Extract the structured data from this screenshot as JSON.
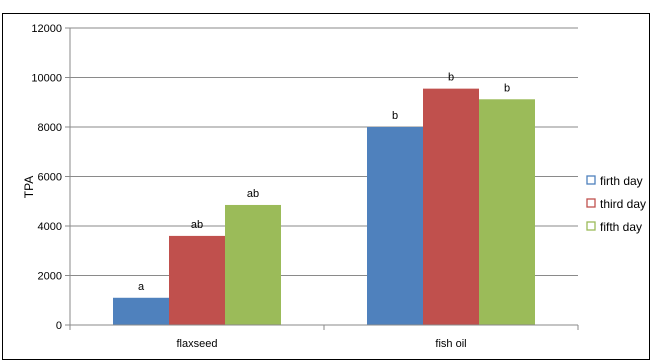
{
  "chart_data": {
    "type": "bar",
    "title": "",
    "xlabel": "",
    "ylabel": "TPA",
    "ylim": [
      0,
      12000
    ],
    "yticks": [
      0,
      2000,
      4000,
      6000,
      8000,
      10000,
      12000
    ],
    "grid": true,
    "legend_position": "right",
    "categories": [
      "flaxseed",
      "fish oil"
    ],
    "series": [
      {
        "name": "firth day",
        "color": "#4F81BD",
        "values": [
          1100,
          8000
        ],
        "labels": [
          "a",
          "b"
        ]
      },
      {
        "name": "third day",
        "color": "#C0504D",
        "values": [
          3600,
          9550
        ],
        "labels": [
          "ab",
          "b"
        ]
      },
      {
        "name": "fifth day",
        "color": "#9BBB59",
        "values": [
          4850,
          9120
        ],
        "labels": [
          "ab",
          "b"
        ]
      }
    ]
  }
}
